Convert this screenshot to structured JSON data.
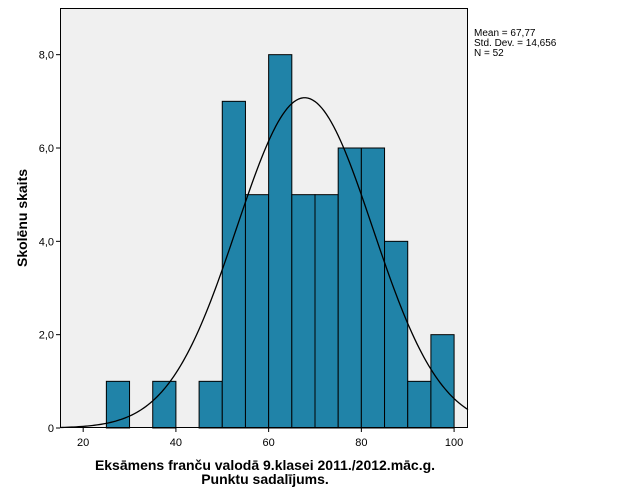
{
  "chart_data": {
    "type": "bar",
    "subtype": "histogram",
    "xlabel": "Eksāmens franču valodā 9.klasei 2011./2012.māc.g.",
    "xlabel_line2": "Punktu sadalījums.",
    "ylabel": "Skolēnu skaits",
    "xlim": [
      15,
      103
    ],
    "ylim": [
      0,
      9
    ],
    "x_ticks": [
      20,
      40,
      60,
      80,
      100
    ],
    "y_ticks": [
      0,
      2,
      4,
      6,
      8
    ],
    "y_tick_labels": [
      "0",
      "2,0",
      "4,0",
      "6,0",
      "8,0"
    ],
    "bin_width": 5,
    "bins": [
      {
        "x0": 25,
        "x1": 30,
        "count": 1
      },
      {
        "x0": 30,
        "x1": 35,
        "count": 0
      },
      {
        "x0": 35,
        "x1": 40,
        "count": 1
      },
      {
        "x0": 40,
        "x1": 45,
        "count": 0
      },
      {
        "x0": 45,
        "x1": 50,
        "count": 1
      },
      {
        "x0": 50,
        "x1": 55,
        "count": 7
      },
      {
        "x0": 55,
        "x1": 60,
        "count": 5
      },
      {
        "x0": 60,
        "x1": 65,
        "count": 8
      },
      {
        "x0": 65,
        "x1": 70,
        "count": 5
      },
      {
        "x0": 70,
        "x1": 75,
        "count": 5
      },
      {
        "x0": 75,
        "x1": 80,
        "count": 6
      },
      {
        "x0": 80,
        "x1": 85,
        "count": 6
      },
      {
        "x0": 85,
        "x1": 90,
        "count": 4
      },
      {
        "x0": 90,
        "x1": 95,
        "count": 1
      },
      {
        "x0": 95,
        "x1": 100,
        "count": 2
      }
    ],
    "normal_curve": {
      "mean": 67.77,
      "std_dev": 14.656,
      "n": 52
    },
    "stats_lines": [
      "Mean = 67,77",
      "Std. Dev. = 14,656",
      "N = 52"
    ],
    "grid": false
  },
  "colors": {
    "bar_fill": "#2083a8",
    "bar_stroke": "#000000",
    "plot_background": "#f0f0f0",
    "curve": "#000000"
  }
}
